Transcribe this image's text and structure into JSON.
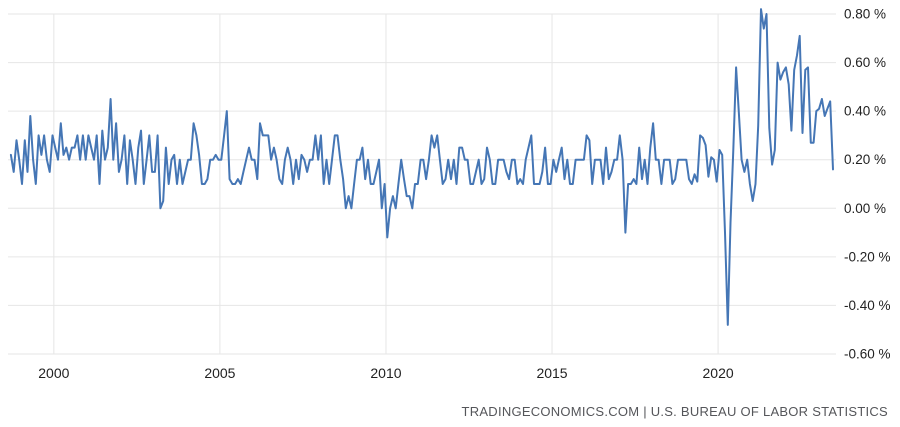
{
  "chart_data": {
    "type": "line",
    "title": "",
    "grid": true,
    "legend": false,
    "y_axis_position": "right",
    "line_color": "#4576b5",
    "grid_color": "#e6e6e6",
    "tick_label_color": "#222222",
    "xlim": [
      1998.62,
      2023.55
    ],
    "ylim": [
      -0.6,
      0.8
    ],
    "x_ticks": [
      2000,
      2005,
      2010,
      2015,
      2020
    ],
    "x_tick_labels": [
      "2000",
      "2005",
      "2010",
      "2015",
      "2020"
    ],
    "y_ticks": [
      0.8,
      0.6,
      0.4,
      0.2,
      0.0,
      -0.2,
      -0.4,
      -0.6
    ],
    "y_tick_labels": [
      "0.80 %",
      "0.60 %",
      "0.40 %",
      "0.20 %",
      "0.00 %",
      "-0.20 %",
      "-0.40 %",
      "-0.60 %"
    ],
    "x_start": {
      "year": 1998,
      "month": 9
    },
    "x_frequency": "monthly",
    "unit": "%",
    "values": [
      0.22,
      0.15,
      0.28,
      0.2,
      0.1,
      0.28,
      0.15,
      0.38,
      0.2,
      0.1,
      0.3,
      0.22,
      0.3,
      0.2,
      0.15,
      0.3,
      0.25,
      0.2,
      0.35,
      0.22,
      0.25,
      0.2,
      0.25,
      0.25,
      0.3,
      0.2,
      0.3,
      0.2,
      0.3,
      0.25,
      0.2,
      0.3,
      0.1,
      0.32,
      0.2,
      0.25,
      0.45,
      0.2,
      0.35,
      0.15,
      0.2,
      0.3,
      0.1,
      0.28,
      0.2,
      0.1,
      0.25,
      0.32,
      0.1,
      0.2,
      0.3,
      0.15,
      0.15,
      0.3,
      0.0,
      0.03,
      0.25,
      0.1,
      0.2,
      0.22,
      0.1,
      0.2,
      0.1,
      0.15,
      0.2,
      0.2,
      0.35,
      0.3,
      0.22,
      0.1,
      0.1,
      0.12,
      0.2,
      0.2,
      0.22,
      0.2,
      0.2,
      0.3,
      0.4,
      0.12,
      0.1,
      0.1,
      0.12,
      0.1,
      0.15,
      0.2,
      0.25,
      0.2,
      0.2,
      0.12,
      0.35,
      0.3,
      0.3,
      0.3,
      0.2,
      0.25,
      0.2,
      0.12,
      0.1,
      0.2,
      0.25,
      0.2,
      0.1,
      0.2,
      0.12,
      0.22,
      0.2,
      0.15,
      0.2,
      0.2,
      0.3,
      0.2,
      0.3,
      0.1,
      0.2,
      0.1,
      0.2,
      0.3,
      0.3,
      0.2,
      0.12,
      0.0,
      0.05,
      0.0,
      0.1,
      0.2,
      0.2,
      0.25,
      0.12,
      0.2,
      0.1,
      0.1,
      0.15,
      0.2,
      0.0,
      0.1,
      -0.12,
      0.0,
      0.05,
      0.0,
      0.1,
      0.2,
      0.12,
      0.05,
      0.05,
      0.0,
      0.1,
      0.1,
      0.2,
      0.2,
      0.12,
      0.2,
      0.3,
      0.25,
      0.3,
      0.2,
      0.1,
      0.12,
      0.2,
      0.12,
      0.2,
      0.1,
      0.25,
      0.25,
      0.2,
      0.2,
      0.1,
      0.1,
      0.15,
      0.2,
      0.1,
      0.12,
      0.25,
      0.2,
      0.1,
      0.1,
      0.2,
      0.2,
      0.2,
      0.15,
      0.12,
      0.2,
      0.2,
      0.1,
      0.12,
      0.1,
      0.2,
      0.25,
      0.3,
      0.1,
      0.1,
      0.1,
      0.15,
      0.25,
      0.1,
      0.1,
      0.2,
      0.15,
      0.2,
      0.25,
      0.12,
      0.2,
      0.1,
      0.1,
      0.2,
      0.2,
      0.2,
      0.2,
      0.3,
      0.28,
      0.1,
      0.2,
      0.2,
      0.2,
      0.1,
      0.25,
      0.12,
      0.15,
      0.2,
      0.2,
      0.3,
      0.2,
      -0.1,
      0.1,
      0.1,
      0.12,
      0.1,
      0.25,
      0.12,
      0.2,
      0.1,
      0.25,
      0.35,
      0.2,
      0.2,
      0.1,
      0.2,
      0.2,
      0.2,
      0.1,
      0.12,
      0.2,
      0.2,
      0.2,
      0.2,
      0.12,
      0.1,
      0.14,
      0.11,
      0.3,
      0.29,
      0.26,
      0.13,
      0.21,
      0.2,
      0.11,
      0.24,
      0.22,
      -0.1,
      -0.48,
      -0.06,
      0.24,
      0.58,
      0.39,
      0.2,
      0.15,
      0.2,
      0.1,
      0.03,
      0.1,
      0.34,
      0.82,
      0.74,
      0.8,
      0.33,
      0.18,
      0.24,
      0.6,
      0.53,
      0.56,
      0.58,
      0.51,
      0.32,
      0.57,
      0.63,
      0.71,
      0.31,
      0.57,
      0.58,
      0.27,
      0.27,
      0.4,
      0.41,
      0.45,
      0.38,
      0.41,
      0.44,
      0.16
    ]
  },
  "footer": {
    "attribution": "TRADINGECONOMICS.COM | U.S. BUREAU OF LABOR STATISTICS"
  }
}
